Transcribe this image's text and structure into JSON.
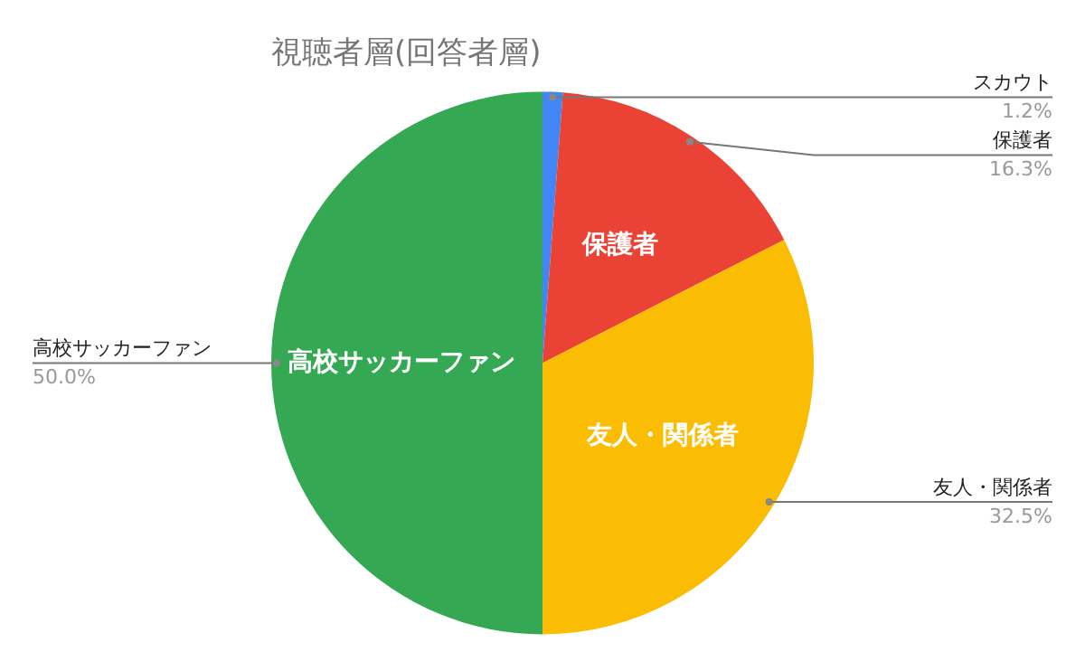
{
  "chart_data": {
    "type": "pie",
    "title": "視聴者層(回答者層)",
    "categories": [
      "スカウト",
      "保護者",
      "友人・関係者",
      "高校サッカーファン"
    ],
    "values": [
      1.2,
      16.3,
      32.5,
      50.0
    ],
    "value_labels": [
      "1.2%",
      "16.3%",
      "32.5%",
      "50.0%"
    ],
    "colors": [
      "#4285f4",
      "#ea4335",
      "#fbbc04",
      "#34a853"
    ],
    "legend": false
  }
}
